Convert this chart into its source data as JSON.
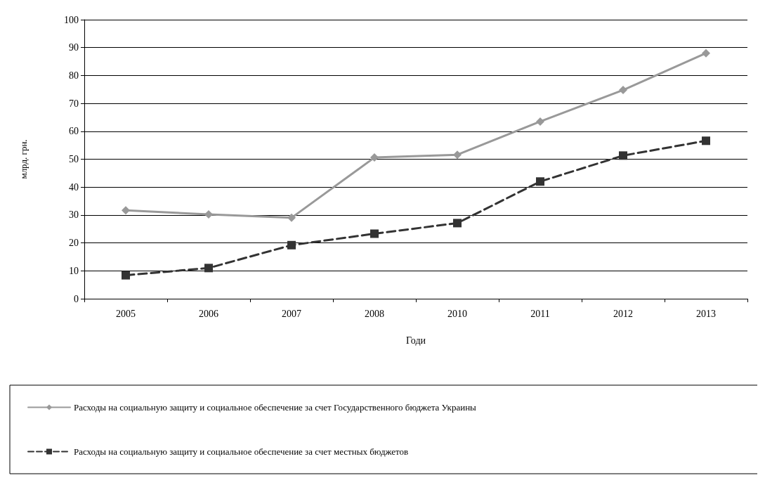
{
  "chart_data": {
    "type": "line",
    "xlabel": "Годи",
    "ylabel": "млрд. грн.",
    "categories": [
      "2005",
      "2006",
      "2007",
      "2008",
      "2010",
      "2011",
      "2012",
      "2013"
    ],
    "series": [
      {
        "name": "Расходы на социальную защиту и социальное обеспечение за счет Государственного бюджета Украины",
        "color": "#999999",
        "marker": "diamond",
        "line_style": "solid",
        "values": [
          31.7,
          30.2,
          29.0,
          50.6,
          51.6,
          63.5,
          74.8,
          88.0
        ]
      },
      {
        "name": "Расходы на социальную защиту и социальное обеспечение за счет местных бюджетов",
        "color": "#333333",
        "marker": "square",
        "line_style": "dashed",
        "values": [
          8.4,
          11.0,
          19.2,
          23.3,
          27.1,
          42.0,
          51.3,
          56.6
        ]
      }
    ],
    "ylim": [
      0,
      100
    ],
    "yticks": [
      0,
      10,
      20,
      30,
      40,
      50,
      60,
      70,
      80,
      90,
      100
    ],
    "grid": "y",
    "legend": "bottom"
  }
}
